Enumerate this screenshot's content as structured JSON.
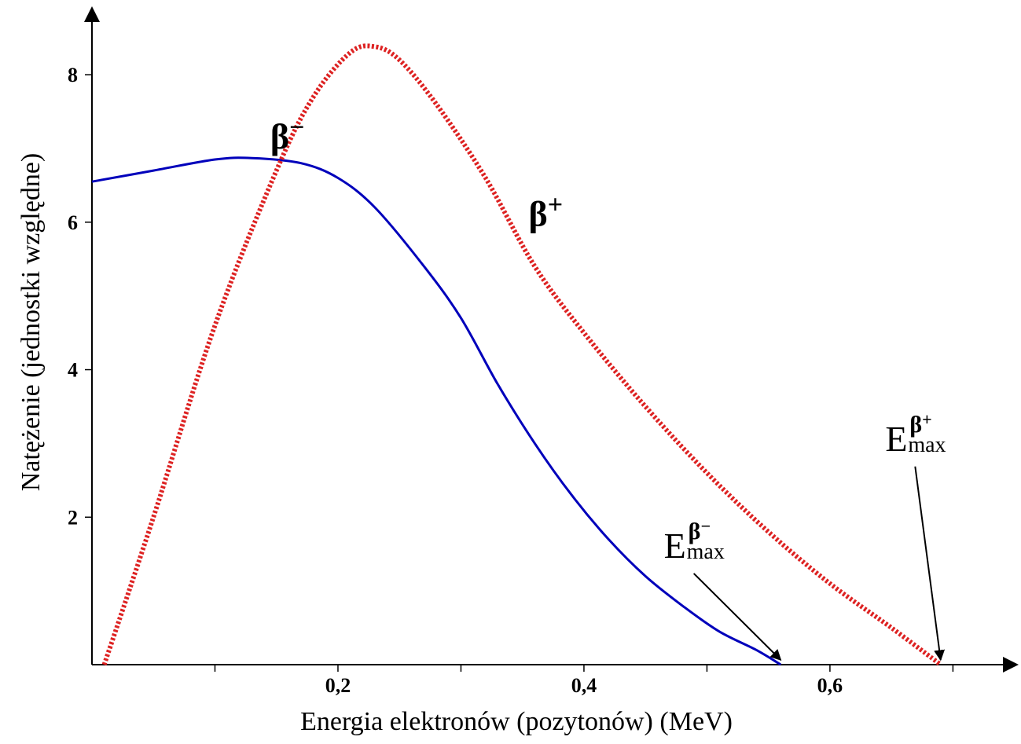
{
  "chart_data": {
    "type": "line",
    "xlabel": "Energia elektronów (pozytonów) (MeV)",
    "ylabel": "Natężenie (jednostki względne)",
    "xlim": [
      0,
      0.74
    ],
    "ylim": [
      0,
      8.8
    ],
    "x_ticks": [
      0.1,
      0.2,
      0.3,
      0.4,
      0.5,
      0.6,
      0.7
    ],
    "x_tick_labels": [
      {
        "value": 0.2,
        "label": "0,2"
      },
      {
        "value": 0.4,
        "label": "0,4"
      },
      {
        "value": 0.6,
        "label": "0,6"
      }
    ],
    "y_ticks": [
      2,
      4,
      6,
      8
    ],
    "y_tick_labels": [
      {
        "value": 2,
        "label": "2"
      },
      {
        "value": 4,
        "label": "4"
      },
      {
        "value": 6,
        "label": "6"
      },
      {
        "value": 8,
        "label": "8"
      }
    ],
    "grid": false,
    "legend": "none",
    "series": [
      {
        "name": "β⁻",
        "color": "#0000bb",
        "style": "solid",
        "x": [
          0.0,
          0.05,
          0.1,
          0.13,
          0.17,
          0.2,
          0.23,
          0.27,
          0.3,
          0.33,
          0.36,
          0.39,
          0.42,
          0.45,
          0.48,
          0.51,
          0.54,
          0.56
        ],
        "y": [
          6.55,
          6.7,
          6.85,
          6.87,
          6.8,
          6.6,
          6.2,
          5.4,
          4.7,
          3.8,
          3.0,
          2.3,
          1.7,
          1.2,
          0.8,
          0.45,
          0.2,
          0.0
        ]
      },
      {
        "name": "β⁺",
        "color": "#dd2222",
        "style": "dotted",
        "x": [
          0.01,
          0.05,
          0.1,
          0.15,
          0.18,
          0.21,
          0.23,
          0.25,
          0.28,
          0.32,
          0.36,
          0.4,
          0.45,
          0.5,
          0.55,
          0.6,
          0.65,
          0.69
        ],
        "y": [
          0.0,
          2.0,
          4.6,
          6.7,
          7.7,
          8.3,
          8.38,
          8.2,
          7.6,
          6.6,
          5.4,
          4.5,
          3.5,
          2.6,
          1.8,
          1.1,
          0.5,
          0.0
        ]
      }
    ],
    "annotations": [
      {
        "kind": "series-label",
        "text": "β",
        "sup": "−",
        "x": 0.145,
        "y": 7.0
      },
      {
        "kind": "series-label",
        "text": "β",
        "sup": "+",
        "x": 0.355,
        "y": 5.95
      },
      {
        "kind": "endpoint",
        "main": "E",
        "sub": "max",
        "sup": "β",
        "supsign": "−",
        "x": 0.465,
        "y": 1.45,
        "arrow_to_x": 0.56,
        "arrow_to_y": 0.0
      },
      {
        "kind": "endpoint",
        "main": "E",
        "sub": "max",
        "sup": "β",
        "supsign": "+",
        "x": 0.645,
        "y": 2.9,
        "arrow_to_x": 0.69,
        "arrow_to_y": 0.0
      }
    ]
  }
}
